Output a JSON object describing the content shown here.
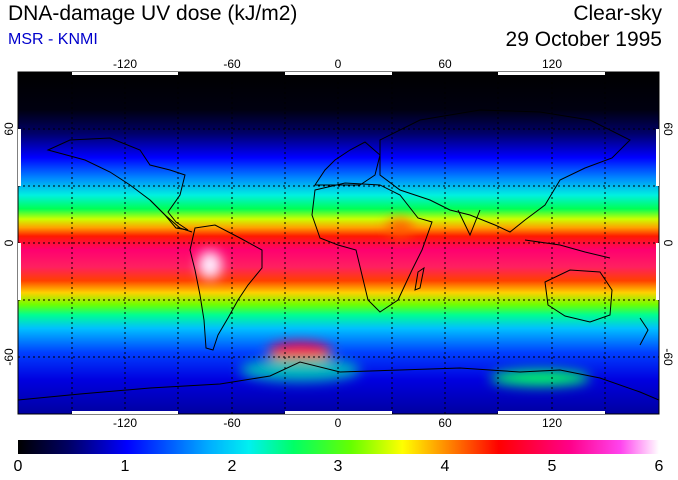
{
  "header": {
    "title": "DNA-damage UV dose (kJ/m2)",
    "subtitle": "MSR - KNMI",
    "condition": "Clear-sky",
    "date": "29 October 1995"
  },
  "map": {
    "lon_range": [
      -180,
      180
    ],
    "lat_range": [
      -90,
      90
    ],
    "lon_ticks": [
      -120,
      -60,
      0,
      60,
      120
    ],
    "lat_ticks": [
      60,
      0,
      -60
    ],
    "lon_tick_labels": [
      "-120",
      "-60",
      "0",
      "60",
      "120"
    ],
    "lat_tick_labels": [
      "60",
      "0",
      "-60"
    ],
    "grid_style": "dotted",
    "grid_step_deg": 30,
    "colorscale": [
      "#000000",
      "#000066",
      "#0000ff",
      "#00e5ff",
      "#00ff66",
      "#66ff00",
      "#ffff00",
      "#ff8800",
      "#ff0000",
      "#ff0088",
      "#ff44ee",
      "#ffffff"
    ]
  },
  "colorbar": {
    "min": 0,
    "max": 6,
    "tick_labels": [
      "0",
      "1",
      "2",
      "3",
      "4",
      "5",
      "6"
    ]
  }
}
